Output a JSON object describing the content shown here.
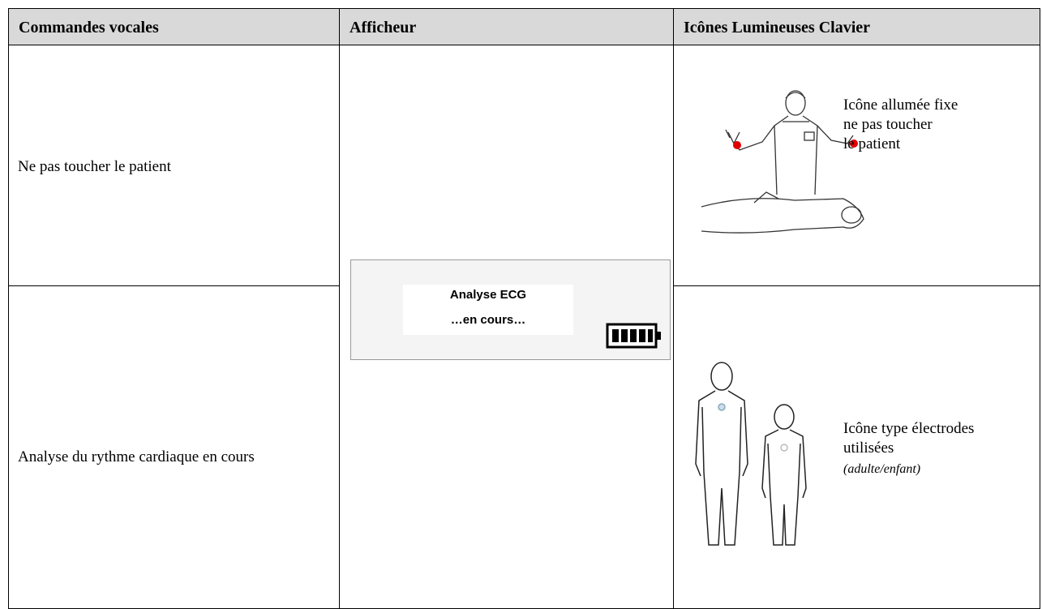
{
  "table": {
    "header": [
      "Commandes vocales",
      "Afficheur",
      "Icônes Lumineuses Clavier"
    ],
    "rows": [
      {
        "voice": "Ne pas toucher le patient",
        "icon_text": [
          "Icône allumée fixe",
          "ne pas toucher",
          "le patient"
        ]
      },
      {
        "voice": "Analyse du rythme cardiaque en cours",
        "icon_text": [
          "Icône type électrodes",
          "utilisées",
          "(adulte/enfant)"
        ]
      }
    ],
    "display": {
      "lines": [
        "Analyse ECG",
        "…en cours…"
      ]
    }
  }
}
